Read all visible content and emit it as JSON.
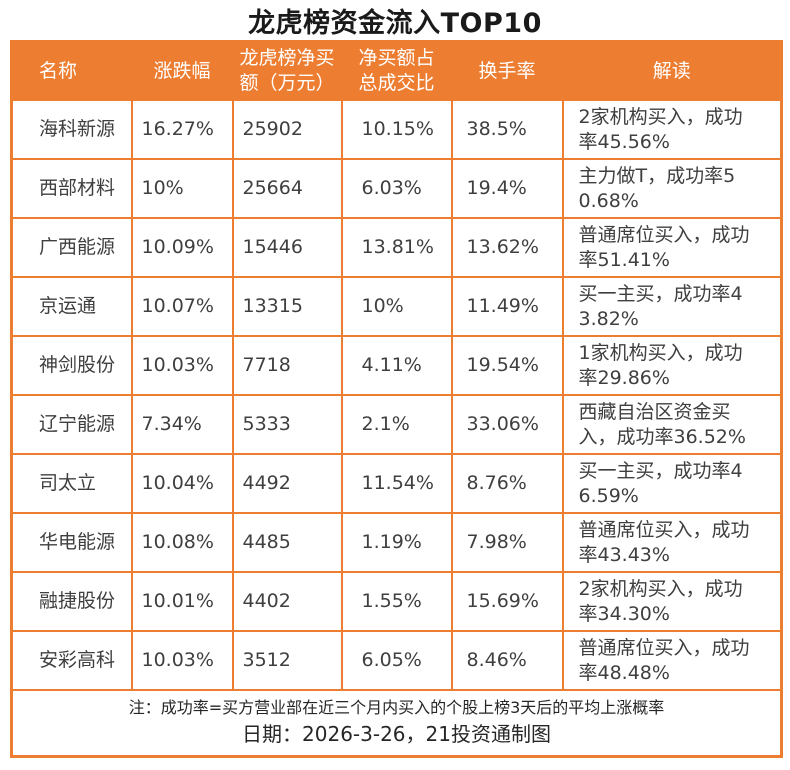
{
  "title": "龙虎榜资金流入TOP10",
  "accent_color": "#ED7D31",
  "header_text_color": "#FFFFFF",
  "body_text_color": "#3F3F3F",
  "chart_data": {
    "type": "table",
    "title": "龙虎榜资金流入TOP10",
    "columns": [
      "名称",
      "涨跌幅",
      "龙虎榜净买\n额（万元）",
      "净买额占\n总成交比",
      "换手率",
      "解读"
    ],
    "rows": [
      {
        "name": "海科新源",
        "change": "16.27%",
        "net_buy": "25902",
        "ratio": "10.15%",
        "turnover": "38.5%",
        "note": "2家机构买入，成功率45.56%"
      },
      {
        "name": "西部材料",
        "change": "10%",
        "net_buy": "25664",
        "ratio": "6.03%",
        "turnover": "19.4%",
        "note": "主力做T，成功率50.68%"
      },
      {
        "name": "广西能源",
        "change": "10.09%",
        "net_buy": "15446",
        "ratio": "13.81%",
        "turnover": "13.62%",
        "note": "普通席位买入，成功率51.41%"
      },
      {
        "name": "京运通",
        "change": "10.07%",
        "net_buy": "13315",
        "ratio": "10%",
        "turnover": "11.49%",
        "note": "买一主买，成功率43.82%"
      },
      {
        "name": "神剑股份",
        "change": "10.03%",
        "net_buy": "7718",
        "ratio": "4.11%",
        "turnover": "19.54%",
        "note": "1家机构买入，成功率29.86%"
      },
      {
        "name": "辽宁能源",
        "change": "7.34%",
        "net_buy": "5333",
        "ratio": "2.1%",
        "turnover": "33.06%",
        "note": "西藏自治区资金买入，成功率36.52%"
      },
      {
        "name": "司太立",
        "change": "10.04%",
        "net_buy": "4492",
        "ratio": "11.54%",
        "turnover": "8.76%",
        "note": "买一主买，成功率46.59%"
      },
      {
        "name": "华电能源",
        "change": "10.08%",
        "net_buy": "4485",
        "ratio": "1.19%",
        "turnover": "7.98%",
        "note": "普通席位买入，成功率43.43%"
      },
      {
        "name": "融捷股份",
        "change": "10.01%",
        "net_buy": "4402",
        "ratio": "1.55%",
        "turnover": "15.69%",
        "note": "2家机构买入，成功率34.30%"
      },
      {
        "name": "安彩高科",
        "change": "10.03%",
        "net_buy": "3512",
        "ratio": "6.05%",
        "turnover": "8.46%",
        "note": "普通席位买入，成功率48.48%"
      }
    ],
    "footnote": "注：成功率=买方营业部在近三个月内买入的个股上榜3天后的平均上涨概率",
    "dateline": "日期：2026-3-26，21投资通制图"
  }
}
